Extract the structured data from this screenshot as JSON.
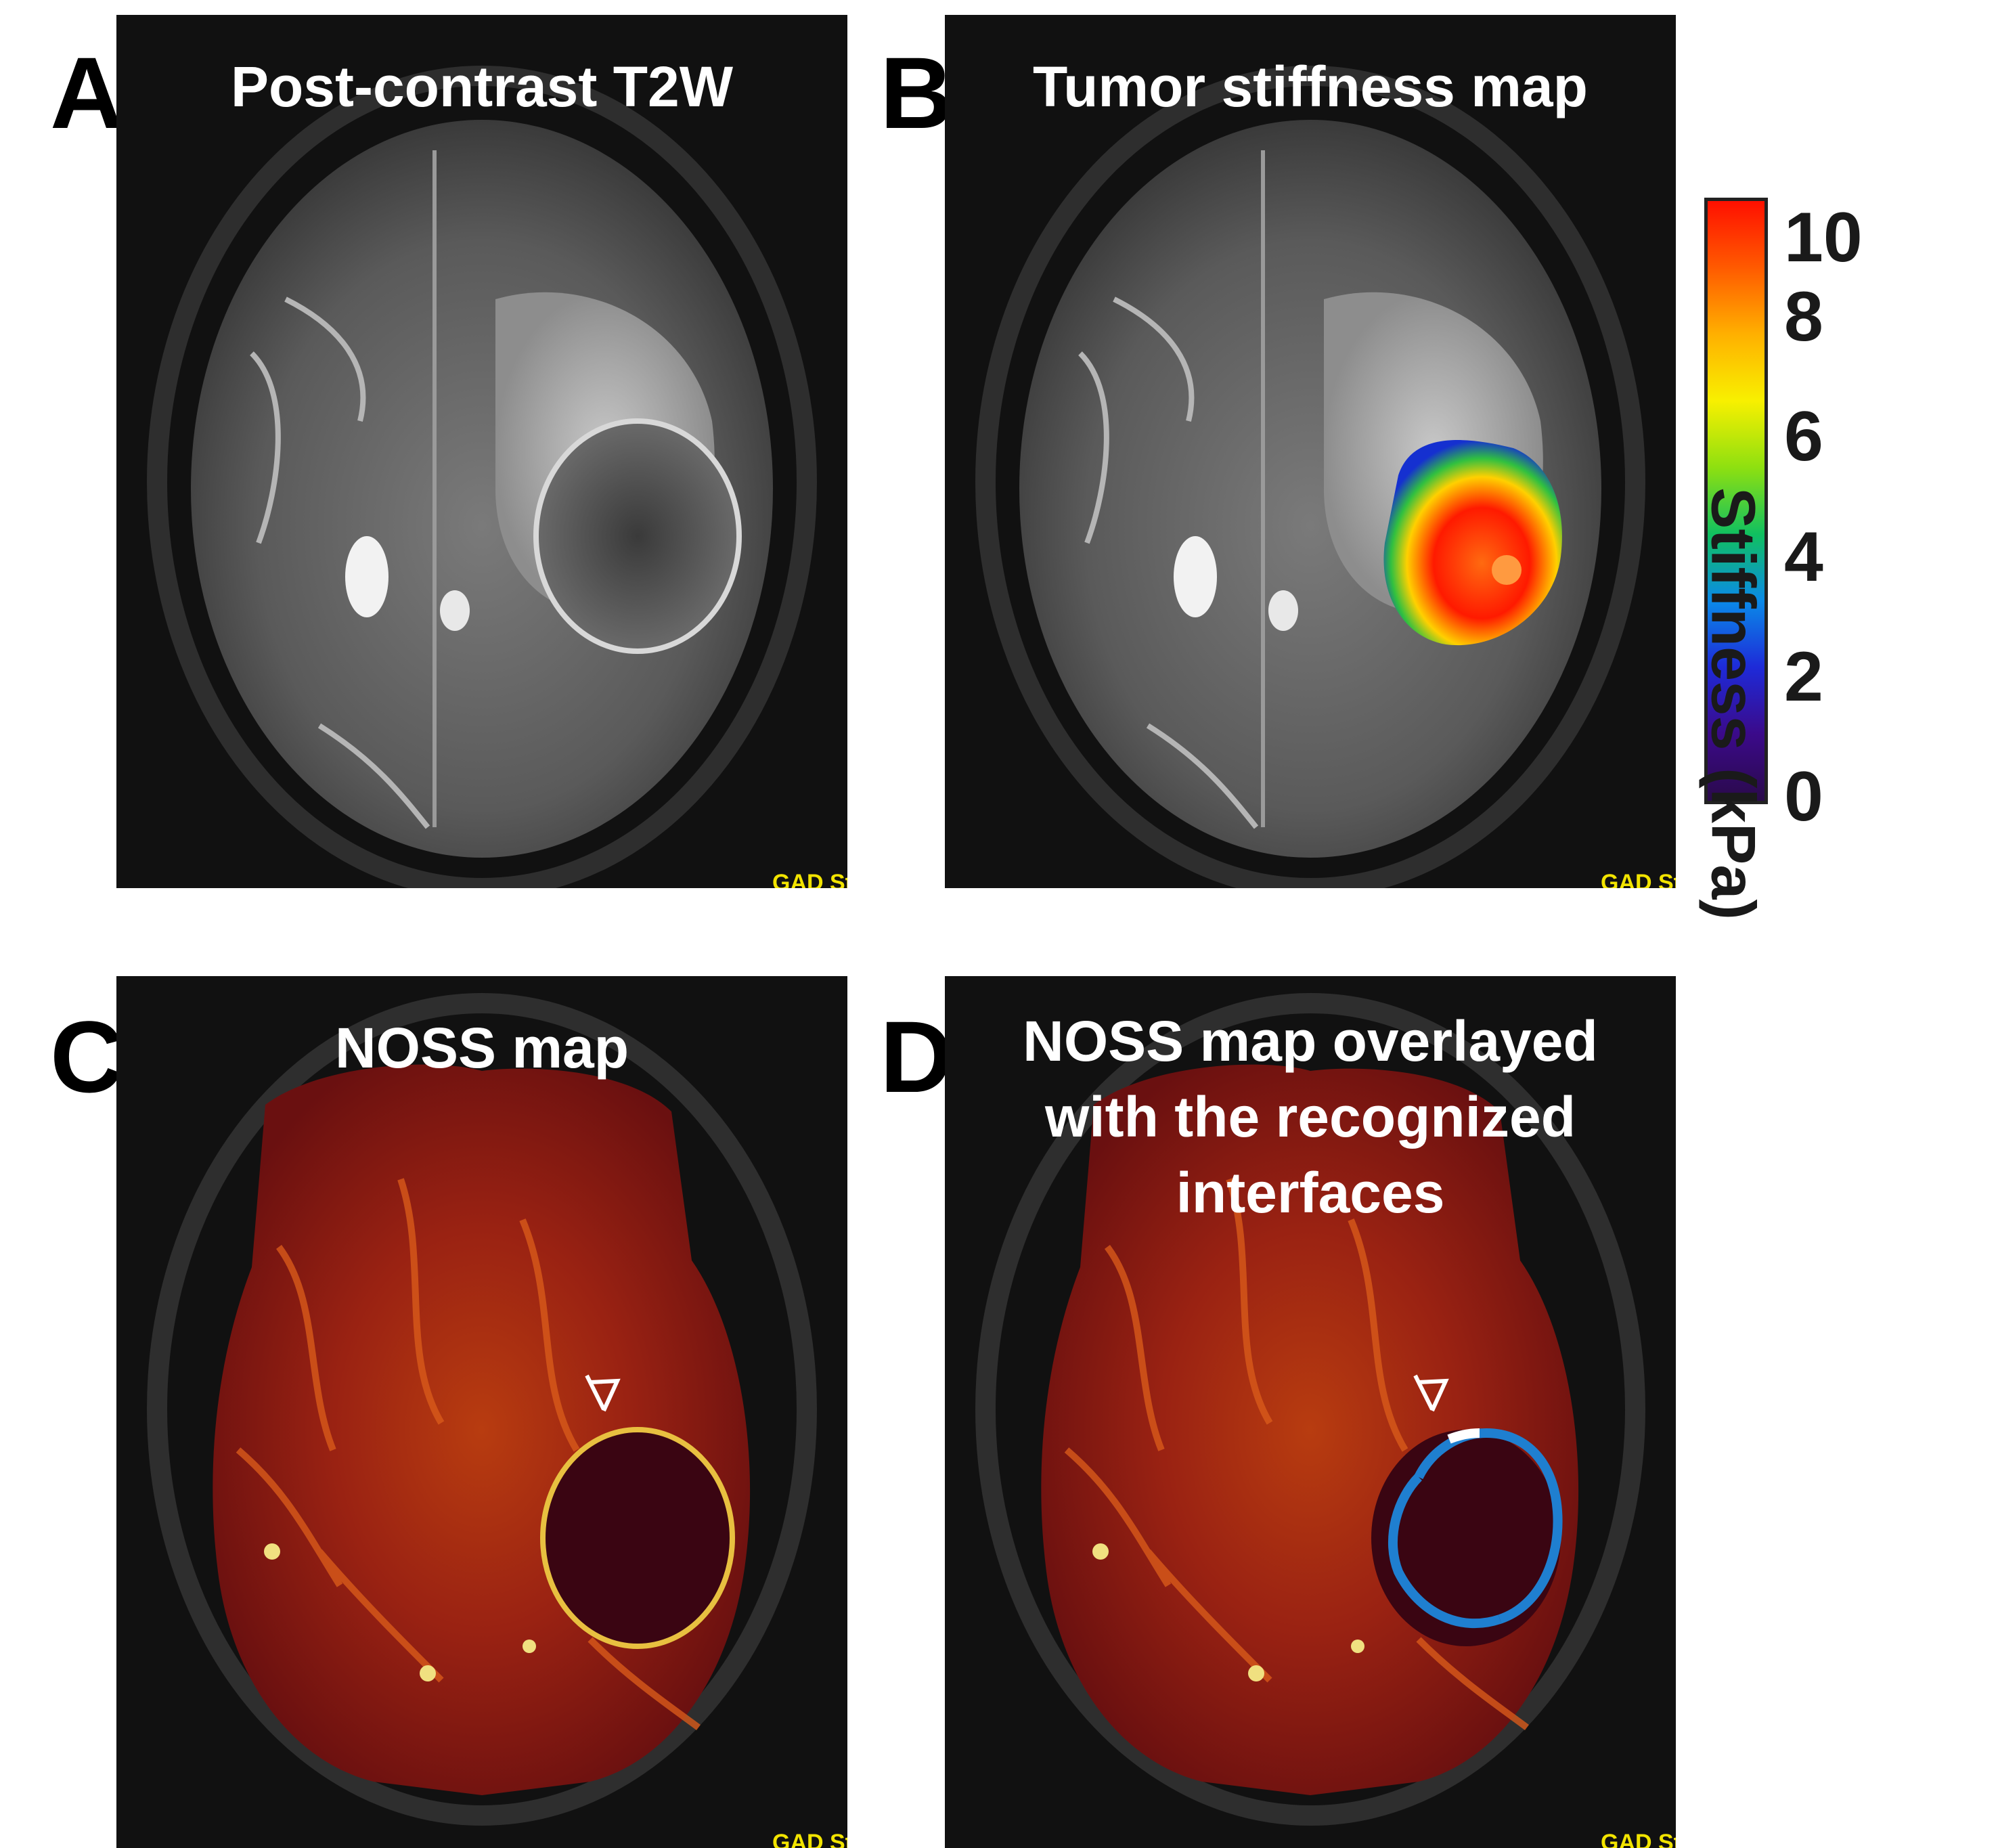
{
  "panels": [
    {
      "letter": "A",
      "title": "Post-contrast T2W",
      "corner_text": "GAD St"
    },
    {
      "letter": "B",
      "title": "Tumor stiffness map",
      "corner_text": "GAD St"
    },
    {
      "letter": "C",
      "title": "NOSS map",
      "corner_text": "GAD St"
    },
    {
      "letter": "D",
      "title_lines": [
        "NOSS map overlayed",
        "with the recognized",
        "interfaces"
      ],
      "corner_text": "GAD St"
    }
  ],
  "colorbar": {
    "label": "Stiffness (kPa)",
    "ticks": [
      "10",
      "8",
      "6",
      "4",
      "2",
      "0"
    ],
    "range": [
      0,
      10
    ],
    "colors": [
      "#2a0a4a",
      "#3b0a8a",
      "#1e2ad8",
      "#0a8ae8",
      "#10c060",
      "#8ee010",
      "#f8f000",
      "#ffb000",
      "#ff5a00",
      "#ff1000"
    ]
  },
  "colors": {
    "background": "#111111",
    "interface_outline": "#1f7fd0",
    "interface_highlight": "#ffffff"
  }
}
